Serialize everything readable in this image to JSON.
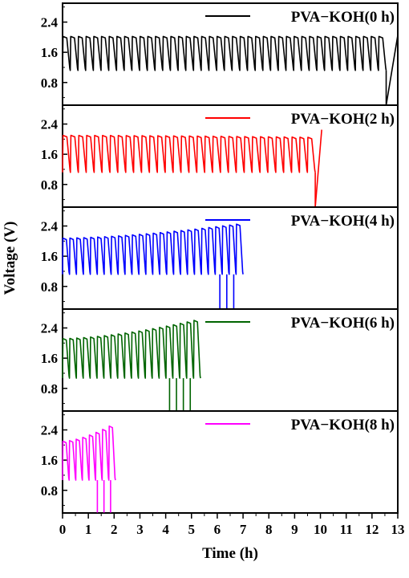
{
  "chart_data": {
    "type": "line",
    "layout": "vertically stacked panels sharing the x-axis",
    "xlabel": "Time (h)",
    "ylabel": "Voltage (V)",
    "xlim": [
      0,
      13
    ],
    "ylim": [
      0.2,
      2.9
    ],
    "x_ticks": [
      "0",
      "1",
      "2",
      "3",
      "4",
      "5",
      "6",
      "7",
      "8",
      "9",
      "10",
      "11",
      "12",
      "13"
    ],
    "y_ticks": [
      "0.8",
      "1.6",
      "2.4"
    ],
    "grid": false,
    "legend_position": "top-right of each panel",
    "panels": [
      {
        "series_name": "PVA−KOH(0 h)",
        "color": "#000000",
        "cycles": 42,
        "end_time": 12.55,
        "charge_start": [
          2.02,
          2.02
        ],
        "discharge_start": [
          1.12,
          1.12
        ],
        "failure": {
          "time": 12.55,
          "voltage": 0.2
        },
        "tail": {
          "time": 13.0,
          "voltage": 2.05
        }
      },
      {
        "series_name": "PVA−KOH(2 h)",
        "color": "#ff0000",
        "cycles": 32,
        "end_time": 9.8,
        "charge_start": [
          2.1,
          2.05
        ],
        "discharge_start": [
          1.12,
          1.12
        ],
        "failure": {
          "time": 9.8,
          "voltage": 0.2
        },
        "tail": {
          "time": 10.05,
          "voltage": 2.25
        }
      },
      {
        "series_name": "PVA−KOH(4 h)",
        "color": "#0000ff",
        "cycles": 26,
        "end_time": 7.0,
        "charge_start": [
          2.08,
          2.45
        ],
        "discharge_start": [
          1.12,
          1.12
        ],
        "failure": {
          "time": 6.1,
          "voltage": 0.2
        },
        "tail": null
      },
      {
        "series_name": "PVA−KOH(6 h)",
        "color": "#006400",
        "cycles": 20,
        "end_time": 5.35,
        "charge_start": [
          2.12,
          2.6
        ],
        "discharge_start": [
          1.07,
          1.07
        ],
        "failure": {
          "time": 4.15,
          "voltage": 0.2
        },
        "tail": null
      },
      {
        "series_name": "PVA−KOH(8 h)",
        "color": "#ff00ff",
        "cycles": 8,
        "end_time": 2.05,
        "charge_start": [
          2.1,
          2.5
        ],
        "discharge_start": [
          1.07,
          1.07
        ],
        "failure": {
          "time": 1.35,
          "voltage": 0.2
        },
        "tail": null
      }
    ]
  }
}
